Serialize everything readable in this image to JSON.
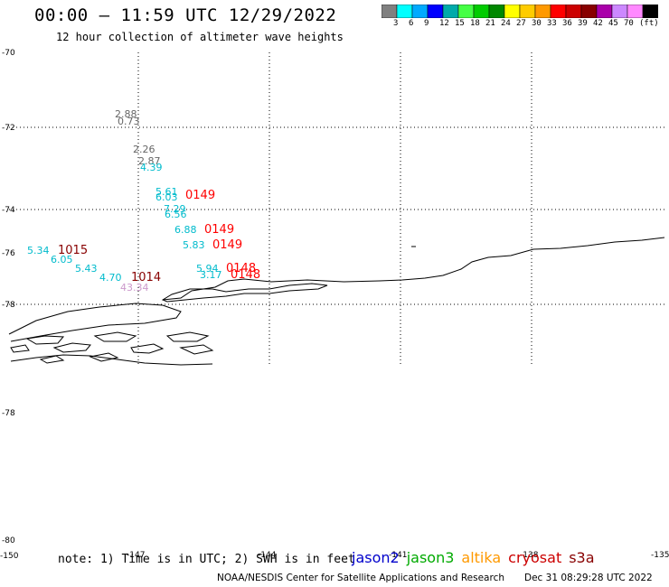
{
  "header": {
    "title": "00:00 – 11:59 UTC 12/29/2022",
    "subtitle": "12 hour collection of altimeter wave heights"
  },
  "legend": {
    "swatches": [
      "#808080",
      "#00ffff",
      "#00aaff",
      "#0000ff",
      "#00aaaa",
      "#44ff44",
      "#00cc00",
      "#008800",
      "#ffff00",
      "#ffcc00",
      "#ff9900",
      "#ff0000",
      "#cc0000",
      "#880000",
      "#aa00aa",
      "#cc88ff",
      "#ff88ff",
      "#000000"
    ],
    "labels": [
      "3",
      "6",
      "9",
      "12",
      "15",
      "18",
      "21",
      "24",
      "27",
      "30",
      "33",
      "36",
      "39",
      "42",
      "45",
      "70",
      "(ft)"
    ]
  },
  "axes": {
    "lat_labels": [
      "-70",
      "-72",
      "-74",
      "-76",
      "-78",
      "-78",
      "-80"
    ],
    "lon_labels": [
      "-150",
      "-147",
      "-144",
      "-141",
      "-138",
      "-135"
    ]
  },
  "observations": [
    {
      "text": "2.88",
      "color": "#666666"
    },
    {
      "text": "0.73",
      "color": "#666666"
    },
    {
      "text": "2.26",
      "color": "#666666"
    },
    {
      "text": "2.87",
      "color": "#666666"
    },
    {
      "text": "4.39",
      "color": "#00bbcc"
    },
    {
      "text": "5.61",
      "color": "#00bbcc"
    },
    {
      "text": "6.03",
      "color": "#00bbcc"
    },
    {
      "text": "7.29",
      "color": "#00bbcc"
    },
    {
      "text": "6.56",
      "color": "#00bbcc"
    },
    {
      "text": "6.88",
      "color": "#00bbcc"
    },
    {
      "text": "5.83",
      "color": "#00bbcc"
    },
    {
      "text": "5.34",
      "color": "#00bbcc"
    },
    {
      "text": "6.05",
      "color": "#00bbcc"
    },
    {
      "text": "5.43",
      "color": "#00bbcc"
    },
    {
      "text": "4.70",
      "color": "#00bbcc"
    },
    {
      "text": "5.94",
      "color": "#00bbcc"
    },
    {
      "text": "3.17",
      "color": "#00bbcc"
    },
    {
      "text": "43.34",
      "color": "#cc99cc"
    }
  ],
  "pass_labels": [
    {
      "text": "0149",
      "color": "#ff0000"
    },
    {
      "text": "0149",
      "color": "#ff0000"
    },
    {
      "text": "0149",
      "color": "#ff0000"
    },
    {
      "text": "0148",
      "color": "#ff0000"
    },
    {
      "text": "0148",
      "color": "#ff0000"
    },
    {
      "text": "1015",
      "color": "#880000"
    },
    {
      "text": "1014",
      "color": "#880000"
    }
  ],
  "note": "note: 1) Time is in UTC; 2) SWH is in feet",
  "satellites": [
    {
      "name": "jason2",
      "color": "#0000cc"
    },
    {
      "name": "jason3",
      "color": "#00aa00"
    },
    {
      "name": "altika",
      "color": "#ff9900"
    },
    {
      "name": "cryosat",
      "color": "#cc0000"
    },
    {
      "name": "s3a",
      "color": "#880000"
    }
  ],
  "footer": {
    "credit": "NOAA/NESDIS Center for Satellite Applications and Research",
    "timestamp": "Dec 31 08:29:28 UTC 2022"
  }
}
